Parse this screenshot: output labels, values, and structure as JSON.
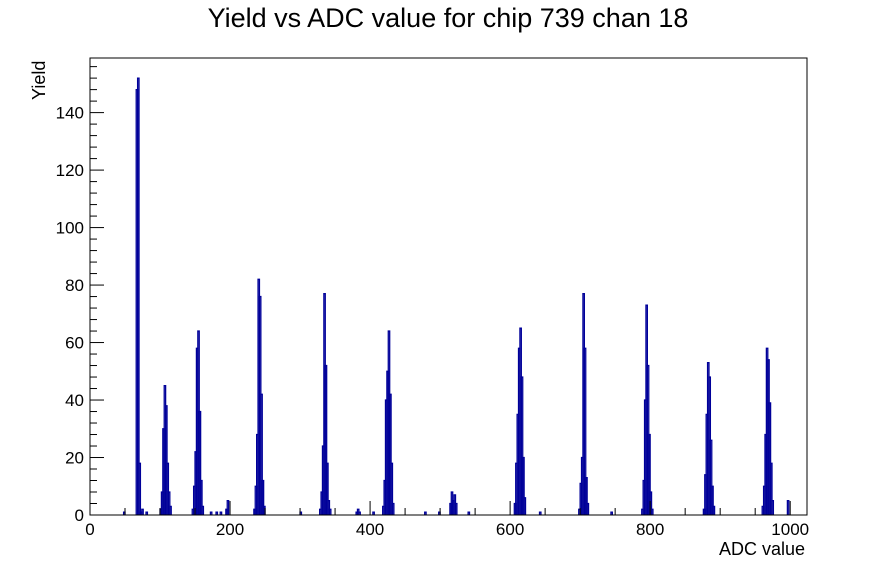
{
  "chart_data": {
    "type": "histogram",
    "title": "Yield vs ADC value for chip 739 chan 18",
    "xlabel": "ADC value",
    "ylabel": "Yield",
    "xlim": [
      0,
      1024
    ],
    "ylim": [
      0,
      159
    ],
    "xticks": [
      0,
      200,
      400,
      600,
      800,
      1000
    ],
    "yticks": [
      0,
      20,
      40,
      60,
      80,
      100,
      120,
      140
    ],
    "bin_width": 2,
    "grid": false,
    "legend": "none",
    "line_color": "#000099",
    "bins": [
      [
        48,
        1
      ],
      [
        66,
        148
      ],
      [
        68,
        152
      ],
      [
        70,
        18
      ],
      [
        72,
        1
      ],
      [
        74,
        2
      ],
      [
        80,
        1
      ],
      [
        100,
        2
      ],
      [
        102,
        8
      ],
      [
        104,
        30
      ],
      [
        106,
        45
      ],
      [
        108,
        38
      ],
      [
        110,
        18
      ],
      [
        112,
        8
      ],
      [
        114,
        3
      ],
      [
        146,
        2
      ],
      [
        148,
        10
      ],
      [
        150,
        22
      ],
      [
        152,
        58
      ],
      [
        154,
        64
      ],
      [
        156,
        36
      ],
      [
        158,
        12
      ],
      [
        160,
        3
      ],
      [
        172,
        1
      ],
      [
        180,
        1
      ],
      [
        186,
        1
      ],
      [
        194,
        2
      ],
      [
        196,
        5
      ],
      [
        234,
        2
      ],
      [
        236,
        10
      ],
      [
        238,
        28
      ],
      [
        240,
        82
      ],
      [
        242,
        76
      ],
      [
        244,
        42
      ],
      [
        246,
        12
      ],
      [
        248,
        3
      ],
      [
        300,
        1
      ],
      [
        328,
        2
      ],
      [
        330,
        8
      ],
      [
        332,
        24
      ],
      [
        334,
        77
      ],
      [
        336,
        52
      ],
      [
        338,
        18
      ],
      [
        340,
        5
      ],
      [
        342,
        2
      ],
      [
        380,
        1
      ],
      [
        382,
        2
      ],
      [
        384,
        1
      ],
      [
        404,
        1
      ],
      [
        418,
        3
      ],
      [
        420,
        12
      ],
      [
        422,
        40
      ],
      [
        424,
        50
      ],
      [
        426,
        64
      ],
      [
        428,
        42
      ],
      [
        430,
        18
      ],
      [
        432,
        4
      ],
      [
        478,
        1
      ],
      [
        498,
        1
      ],
      [
        514,
        4
      ],
      [
        516,
        8
      ],
      [
        518,
        5
      ],
      [
        520,
        7
      ],
      [
        522,
        4
      ],
      [
        540,
        1
      ],
      [
        606,
        4
      ],
      [
        608,
        18
      ],
      [
        610,
        35
      ],
      [
        612,
        58
      ],
      [
        614,
        65
      ],
      [
        616,
        48
      ],
      [
        618,
        20
      ],
      [
        620,
        6
      ],
      [
        642,
        1
      ],
      [
        698,
        2
      ],
      [
        700,
        11
      ],
      [
        702,
        20
      ],
      [
        704,
        77
      ],
      [
        706,
        58
      ],
      [
        708,
        13
      ],
      [
        710,
        4
      ],
      [
        744,
        1
      ],
      [
        788,
        2
      ],
      [
        790,
        12
      ],
      [
        792,
        40
      ],
      [
        794,
        73
      ],
      [
        796,
        52
      ],
      [
        798,
        28
      ],
      [
        800,
        8
      ],
      [
        802,
        2
      ],
      [
        876,
        2
      ],
      [
        878,
        14
      ],
      [
        880,
        35
      ],
      [
        882,
        53
      ],
      [
        884,
        48
      ],
      [
        886,
        26
      ],
      [
        888,
        10
      ],
      [
        890,
        3
      ],
      [
        960,
        3
      ],
      [
        962,
        10
      ],
      [
        964,
        28
      ],
      [
        966,
        58
      ],
      [
        968,
        54
      ],
      [
        970,
        39
      ],
      [
        972,
        18
      ],
      [
        974,
        5
      ],
      [
        996,
        5
      ]
    ]
  }
}
